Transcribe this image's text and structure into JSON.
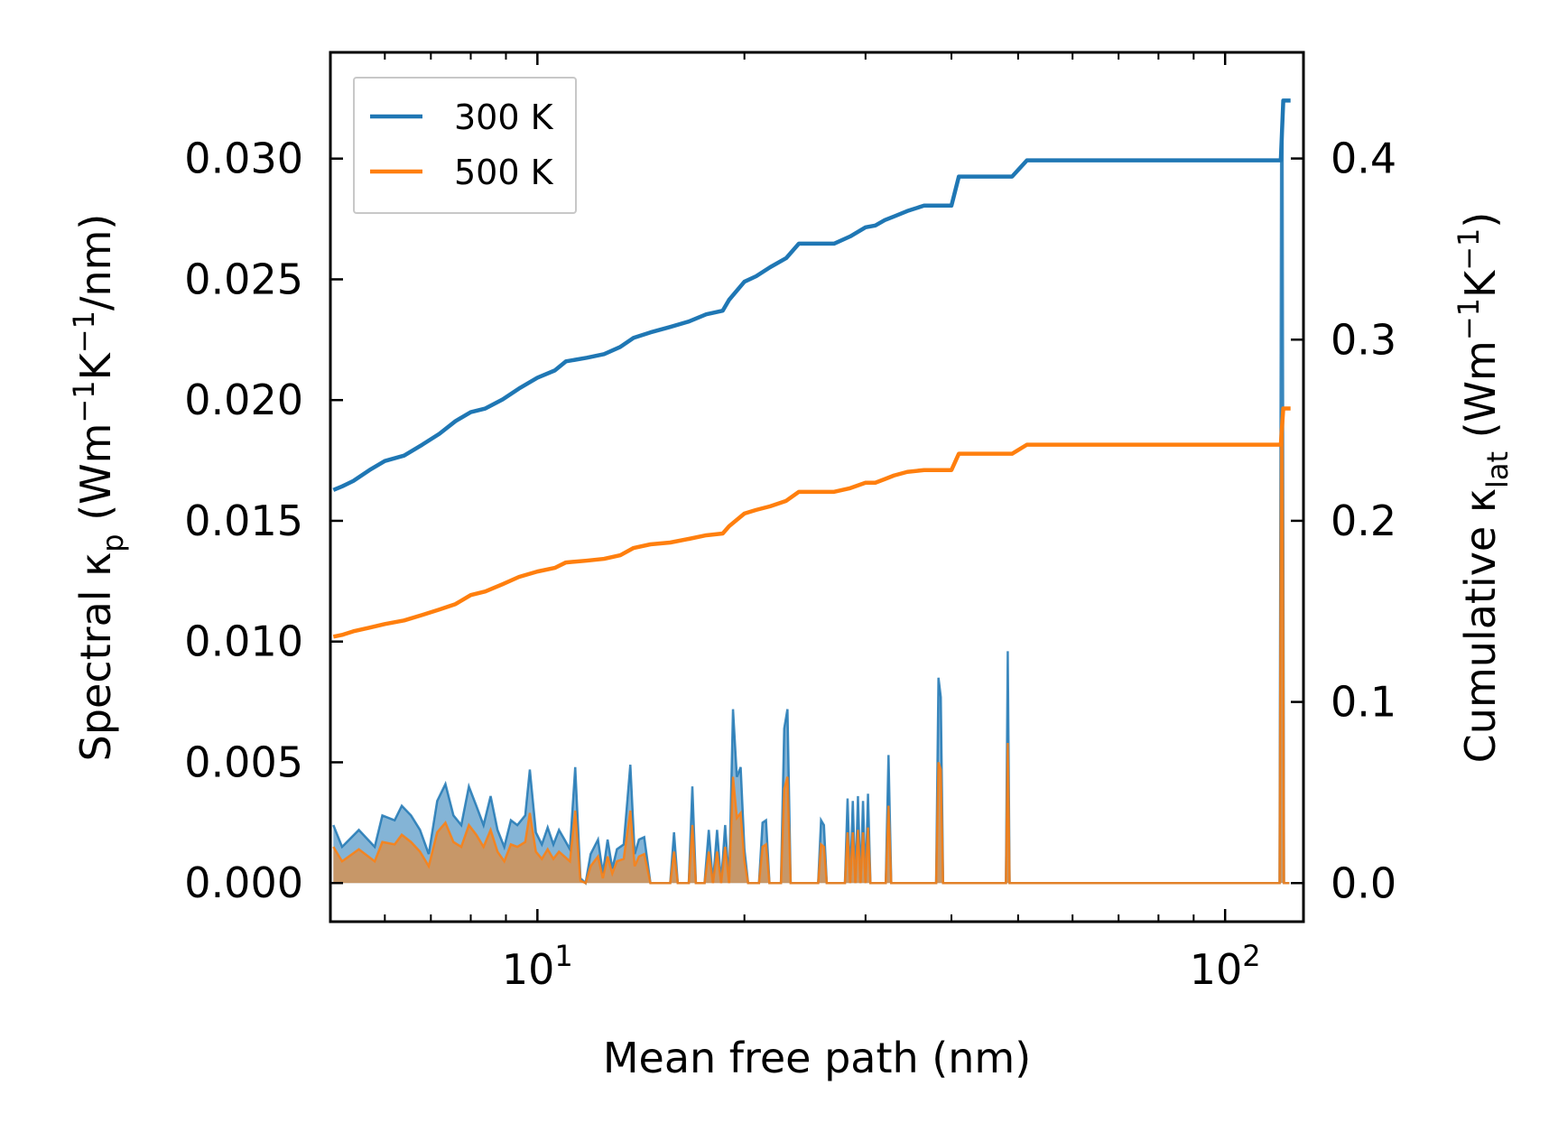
{
  "chart_data": {
    "type": "line",
    "xscale": "log",
    "xlim": [
      5,
      130
    ],
    "xlabel": "Mean free path (nm)",
    "xticks": [
      {
        "value": 10,
        "base": "10",
        "exp": "1"
      },
      {
        "value": 100,
        "base": "10",
        "exp": "2"
      }
    ],
    "left_axis": {
      "label_parts": {
        "main": "Spectral κ",
        "sub": "p",
        "unit_open": " (Wm",
        "sup1": "−1",
        "mid": "K",
        "sup2": "−1",
        "unit_close": "/nm)"
      },
      "ylim": [
        -0.0016,
        0.0344
      ],
      "ticks": [
        "0.000",
        "0.005",
        "0.010",
        "0.015",
        "0.020",
        "0.025",
        "0.030"
      ],
      "tick_values": [
        0,
        0.005,
        0.01,
        0.015,
        0.02,
        0.025,
        0.03
      ]
    },
    "right_axis": {
      "label_parts": {
        "main": "Cumulative κ",
        "sub": "lat",
        "unit_open": " (Wm",
        "sup1": "−1",
        "mid": "K",
        "sup2": "−1",
        "unit_close": ")"
      },
      "ylim": [
        -0.0213,
        0.4586
      ],
      "ticks": [
        "0.0",
        "0.1",
        "0.2",
        "0.3",
        "0.4"
      ],
      "tick_values": [
        0,
        0.1,
        0.2,
        0.3,
        0.4
      ]
    },
    "legend": {
      "position": "top-left",
      "entries": [
        "300 K",
        "500 K"
      ]
    },
    "series": [
      {
        "name": "300 K",
        "color": "#1f77b4",
        "cumulative": [
          [
            5.05,
            0.217
          ],
          [
            5.2,
            0.219
          ],
          [
            5.4,
            0.222
          ],
          [
            5.7,
            0.228
          ],
          [
            6.0,
            0.233
          ],
          [
            6.4,
            0.236
          ],
          [
            6.8,
            0.242
          ],
          [
            7.2,
            0.248
          ],
          [
            7.6,
            0.255
          ],
          [
            8.0,
            0.26
          ],
          [
            8.4,
            0.262
          ],
          [
            8.9,
            0.267
          ],
          [
            9.4,
            0.273
          ],
          [
            10.0,
            0.279
          ],
          [
            10.6,
            0.283
          ],
          [
            11.0,
            0.288
          ],
          [
            11.8,
            0.29
          ],
          [
            12.5,
            0.292
          ],
          [
            13.2,
            0.296
          ],
          [
            13.8,
            0.301
          ],
          [
            14.6,
            0.304
          ],
          [
            15.6,
            0.307
          ],
          [
            16.6,
            0.31
          ],
          [
            17.6,
            0.314
          ],
          [
            18.6,
            0.316
          ],
          [
            19.0,
            0.322
          ],
          [
            20.0,
            0.332
          ],
          [
            20.8,
            0.335
          ],
          [
            21.8,
            0.34
          ],
          [
            23.0,
            0.345
          ],
          [
            24.0,
            0.353
          ],
          [
            27.0,
            0.353
          ],
          [
            28.5,
            0.357
          ],
          [
            30.0,
            0.362
          ],
          [
            31.0,
            0.363
          ],
          [
            32.0,
            0.366
          ],
          [
            33.0,
            0.368
          ],
          [
            34.5,
            0.371
          ],
          [
            36.5,
            0.374
          ],
          [
            40.0,
            0.374
          ],
          [
            41.0,
            0.39
          ],
          [
            49.0,
            0.39
          ],
          [
            51.5,
            0.399
          ],
          [
            120.5,
            0.399
          ],
          [
            121.5,
            0.432
          ],
          [
            124.5,
            0.432
          ]
        ],
        "spectral": [
          [
            5.05,
            0.0024
          ],
          [
            5.2,
            0.0015
          ],
          [
            5.5,
            0.0022
          ],
          [
            5.8,
            0.0015
          ],
          [
            5.95,
            0.0028
          ],
          [
            6.2,
            0.0026
          ],
          [
            6.35,
            0.0032
          ],
          [
            6.55,
            0.0028
          ],
          [
            6.75,
            0.0022
          ],
          [
            6.95,
            0.0012
          ],
          [
            7.15,
            0.0034
          ],
          [
            7.35,
            0.0041
          ],
          [
            7.55,
            0.0028
          ],
          [
            7.75,
            0.0024
          ],
          [
            7.95,
            0.004
          ],
          [
            8.15,
            0.0032
          ],
          [
            8.35,
            0.0024
          ],
          [
            8.55,
            0.0036
          ],
          [
            8.75,
            0.0022
          ],
          [
            8.95,
            0.0015
          ],
          [
            9.15,
            0.0026
          ],
          [
            9.35,
            0.0024
          ],
          [
            9.6,
            0.0028
          ],
          [
            9.75,
            0.0047
          ],
          [
            9.95,
            0.0021
          ],
          [
            10.15,
            0.0016
          ],
          [
            10.35,
            0.0023
          ],
          [
            10.55,
            0.0016
          ],
          [
            10.75,
            0.0022
          ],
          [
            10.95,
            0.0018
          ],
          [
            11.15,
            0.0014
          ],
          [
            11.35,
            0.0048
          ],
          [
            11.55,
            0.0002
          ],
          [
            11.75,
            0.0
          ],
          [
            11.95,
            0.0012
          ],
          [
            12.25,
            0.0018
          ],
          [
            12.45,
            0.0004
          ],
          [
            12.65,
            0.0018
          ],
          [
            12.85,
            0.0006
          ],
          [
            13.05,
            0.0014
          ],
          [
            13.35,
            0.0016
          ],
          [
            13.65,
            0.0049
          ],
          [
            13.85,
            0.0012
          ],
          [
            14.05,
            0.0018
          ],
          [
            14.3,
            0.0019
          ],
          [
            14.6,
            0.0
          ],
          [
            15.6,
            0.0
          ],
          [
            15.8,
            0.0021
          ],
          [
            16.0,
            0.0
          ],
          [
            16.6,
            0.0
          ],
          [
            16.8,
            0.004
          ],
          [
            17.0,
            0.0
          ],
          [
            17.5,
            0.0
          ],
          [
            17.75,
            0.0022
          ],
          [
            18.0,
            0.0
          ],
          [
            18.25,
            0.0022
          ],
          [
            18.5,
            0.0
          ],
          [
            18.75,
            0.0024
          ],
          [
            19.0,
            0.0
          ],
          [
            19.25,
            0.0072
          ],
          [
            19.5,
            0.0044
          ],
          [
            19.75,
            0.0048
          ],
          [
            20.0,
            0.0014
          ],
          [
            20.25,
            0.0
          ],
          [
            21.0,
            0.0
          ],
          [
            21.25,
            0.0025
          ],
          [
            21.5,
            0.0026
          ],
          [
            21.75,
            0.0
          ],
          [
            22.6,
            0.0
          ],
          [
            22.85,
            0.0064
          ],
          [
            23.1,
            0.0072
          ],
          [
            23.35,
            0.0
          ],
          [
            25.6,
            0.0
          ],
          [
            25.85,
            0.0026
          ],
          [
            26.1,
            0.0024
          ],
          [
            26.35,
            0.0
          ],
          [
            28.0,
            0.0
          ],
          [
            28.25,
            0.0035
          ],
          [
            28.5,
            0.0
          ],
          [
            28.75,
            0.0034
          ],
          [
            29.0,
            0.0
          ],
          [
            29.25,
            0.0036
          ],
          [
            29.5,
            0.0
          ],
          [
            29.75,
            0.0034
          ],
          [
            30.0,
            0.0
          ],
          [
            30.25,
            0.0037
          ],
          [
            30.5,
            0.0
          ],
          [
            32.1,
            0.0
          ],
          [
            32.4,
            0.0053
          ],
          [
            32.7,
            0.0
          ],
          [
            38.0,
            0.0
          ],
          [
            38.3,
            0.0085
          ],
          [
            38.6,
            0.0077
          ],
          [
            38.9,
            0.0
          ],
          [
            48.0,
            0.0
          ],
          [
            48.3,
            0.0096
          ],
          [
            48.6,
            0.0
          ],
          [
            120.0,
            0.0
          ],
          [
            120.6,
            0.0298
          ],
          [
            121.2,
            0.032
          ],
          [
            121.8,
            0.0
          ],
          [
            124.0,
            0.0
          ]
        ]
      },
      {
        "name": "500 K",
        "color": "#ff7f0e",
        "cumulative": [
          [
            5.05,
            0.136
          ],
          [
            5.2,
            0.137
          ],
          [
            5.4,
            0.139
          ],
          [
            5.7,
            0.141
          ],
          [
            6.0,
            0.143
          ],
          [
            6.4,
            0.145
          ],
          [
            6.8,
            0.148
          ],
          [
            7.2,
            0.151
          ],
          [
            7.6,
            0.154
          ],
          [
            8.0,
            0.159
          ],
          [
            8.4,
            0.161
          ],
          [
            8.9,
            0.165
          ],
          [
            9.4,
            0.169
          ],
          [
            10.0,
            0.172
          ],
          [
            10.6,
            0.174
          ],
          [
            11.0,
            0.177
          ],
          [
            11.8,
            0.178
          ],
          [
            12.5,
            0.179
          ],
          [
            13.2,
            0.181
          ],
          [
            13.8,
            0.185
          ],
          [
            14.6,
            0.187
          ],
          [
            15.6,
            0.188
          ],
          [
            16.6,
            0.19
          ],
          [
            17.6,
            0.192
          ],
          [
            18.6,
            0.193
          ],
          [
            19.0,
            0.197
          ],
          [
            20.0,
            0.204
          ],
          [
            20.8,
            0.206
          ],
          [
            21.8,
            0.208
          ],
          [
            23.0,
            0.211
          ],
          [
            24.0,
            0.216
          ],
          [
            27.0,
            0.216
          ],
          [
            28.5,
            0.218
          ],
          [
            30.0,
            0.221
          ],
          [
            31.0,
            0.221
          ],
          [
            32.0,
            0.223
          ],
          [
            33.0,
            0.225
          ],
          [
            34.5,
            0.227
          ],
          [
            36.5,
            0.228
          ],
          [
            40.0,
            0.228
          ],
          [
            41.0,
            0.237
          ],
          [
            49.0,
            0.237
          ],
          [
            51.5,
            0.242
          ],
          [
            120.5,
            0.242
          ],
          [
            121.5,
            0.262
          ],
          [
            124.5,
            0.262
          ]
        ],
        "spectral": [
          [
            5.05,
            0.0015
          ],
          [
            5.2,
            0.0009
          ],
          [
            5.5,
            0.0014
          ],
          [
            5.8,
            0.0009
          ],
          [
            5.95,
            0.0017
          ],
          [
            6.2,
            0.0016
          ],
          [
            6.35,
            0.002
          ],
          [
            6.55,
            0.0017
          ],
          [
            6.75,
            0.0013
          ],
          [
            6.95,
            0.0007
          ],
          [
            7.15,
            0.0021
          ],
          [
            7.35,
            0.0025
          ],
          [
            7.55,
            0.0017
          ],
          [
            7.75,
            0.0015
          ],
          [
            7.95,
            0.0024
          ],
          [
            8.15,
            0.002
          ],
          [
            8.35,
            0.0015
          ],
          [
            8.55,
            0.0022
          ],
          [
            8.75,
            0.0013
          ],
          [
            8.95,
            0.0009
          ],
          [
            9.15,
            0.0016
          ],
          [
            9.35,
            0.0015
          ],
          [
            9.6,
            0.0017
          ],
          [
            9.75,
            0.0029
          ],
          [
            9.95,
            0.0013
          ],
          [
            10.15,
            0.001
          ],
          [
            10.35,
            0.0014
          ],
          [
            10.55,
            0.001
          ],
          [
            10.75,
            0.0013
          ],
          [
            10.95,
            0.0011
          ],
          [
            11.15,
            0.0009
          ],
          [
            11.35,
            0.003
          ],
          [
            11.55,
            0.0001
          ],
          [
            11.75,
            0.0
          ],
          [
            11.95,
            0.0007
          ],
          [
            12.25,
            0.0011
          ],
          [
            12.45,
            0.0002
          ],
          [
            12.65,
            0.0011
          ],
          [
            12.85,
            0.0004
          ],
          [
            13.05,
            0.0009
          ],
          [
            13.35,
            0.001
          ],
          [
            13.65,
            0.003
          ],
          [
            13.85,
            0.0007
          ],
          [
            14.05,
            0.0011
          ],
          [
            14.3,
            0.0012
          ],
          [
            14.6,
            0.0
          ],
          [
            15.6,
            0.0
          ],
          [
            15.8,
            0.0013
          ],
          [
            16.0,
            0.0
          ],
          [
            16.6,
            0.0
          ],
          [
            16.8,
            0.0024
          ],
          [
            17.0,
            0.0
          ],
          [
            17.5,
            0.0
          ],
          [
            17.75,
            0.0013
          ],
          [
            18.0,
            0.0
          ],
          [
            18.25,
            0.0013
          ],
          [
            18.5,
            0.0
          ],
          [
            18.75,
            0.0015
          ],
          [
            19.0,
            0.0
          ],
          [
            19.25,
            0.0044
          ],
          [
            19.5,
            0.0027
          ],
          [
            19.75,
            0.0029
          ],
          [
            20.0,
            0.0009
          ],
          [
            20.25,
            0.0
          ],
          [
            21.0,
            0.0
          ],
          [
            21.25,
            0.0015
          ],
          [
            21.5,
            0.0016
          ],
          [
            21.75,
            0.0
          ],
          [
            22.6,
            0.0
          ],
          [
            22.85,
            0.0039
          ],
          [
            23.1,
            0.0044
          ],
          [
            23.35,
            0.0
          ],
          [
            25.6,
            0.0
          ],
          [
            25.85,
            0.0016
          ],
          [
            26.1,
            0.0015
          ],
          [
            26.35,
            0.0
          ],
          [
            28.0,
            0.0
          ],
          [
            28.25,
            0.0021
          ],
          [
            28.5,
            0.0
          ],
          [
            28.75,
            0.0021
          ],
          [
            29.0,
            0.0
          ],
          [
            29.25,
            0.0022
          ],
          [
            29.5,
            0.0
          ],
          [
            29.75,
            0.0021
          ],
          [
            30.0,
            0.0
          ],
          [
            30.25,
            0.0023
          ],
          [
            30.5,
            0.0
          ],
          [
            32.1,
            0.0
          ],
          [
            32.4,
            0.0032
          ],
          [
            32.7,
            0.0
          ],
          [
            38.0,
            0.0
          ],
          [
            38.3,
            0.005
          ],
          [
            38.6,
            0.0047
          ],
          [
            38.9,
            0.0
          ],
          [
            48.0,
            0.0
          ],
          [
            48.3,
            0.0058
          ],
          [
            48.6,
            0.0
          ],
          [
            120.0,
            0.0
          ],
          [
            120.6,
            0.018
          ],
          [
            121.2,
            0.0195
          ],
          [
            121.8,
            0.0
          ],
          [
            124.0,
            0.0
          ]
        ]
      }
    ]
  }
}
